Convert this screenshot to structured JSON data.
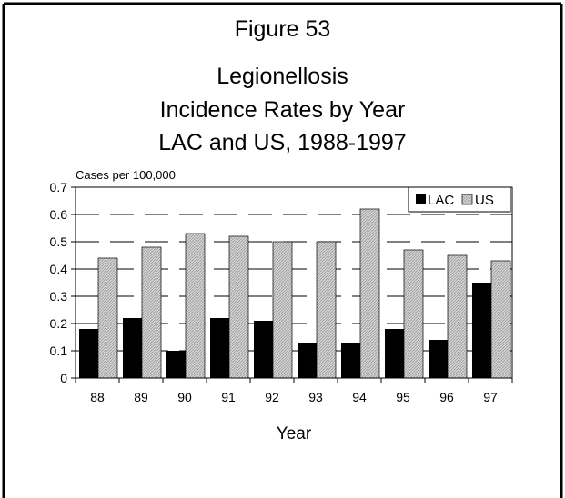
{
  "figure_label": "Figure 53",
  "chart_data": {
    "type": "bar",
    "title": [
      "Legionellosis",
      "Incidence Rates by Year",
      "LAC and US, 1988-1997"
    ],
    "xlabel": "Year",
    "ylabel": "Cases per 100,000",
    "categories": [
      "88",
      "89",
      "90",
      "91",
      "92",
      "93",
      "94",
      "95",
      "96",
      "97"
    ],
    "series": [
      {
        "name": "LAC",
        "color": "#000000",
        "values": [
          0.18,
          0.22,
          0.1,
          0.22,
          0.21,
          0.13,
          0.13,
          0.18,
          0.14,
          0.35
        ]
      },
      {
        "name": "US",
        "color": "#d4d4d4",
        "values": [
          0.44,
          0.48,
          0.53,
          0.52,
          0.5,
          0.5,
          0.62,
          0.47,
          0.45,
          0.43
        ]
      }
    ],
    "ylim": [
      0,
      0.7
    ],
    "yticks": [
      "0",
      "0.1",
      "0.2",
      "0.3",
      "0.4",
      "0.5",
      "0.6",
      "0.7"
    ],
    "grid": "dashed horizontal",
    "legend": "top-right"
  }
}
